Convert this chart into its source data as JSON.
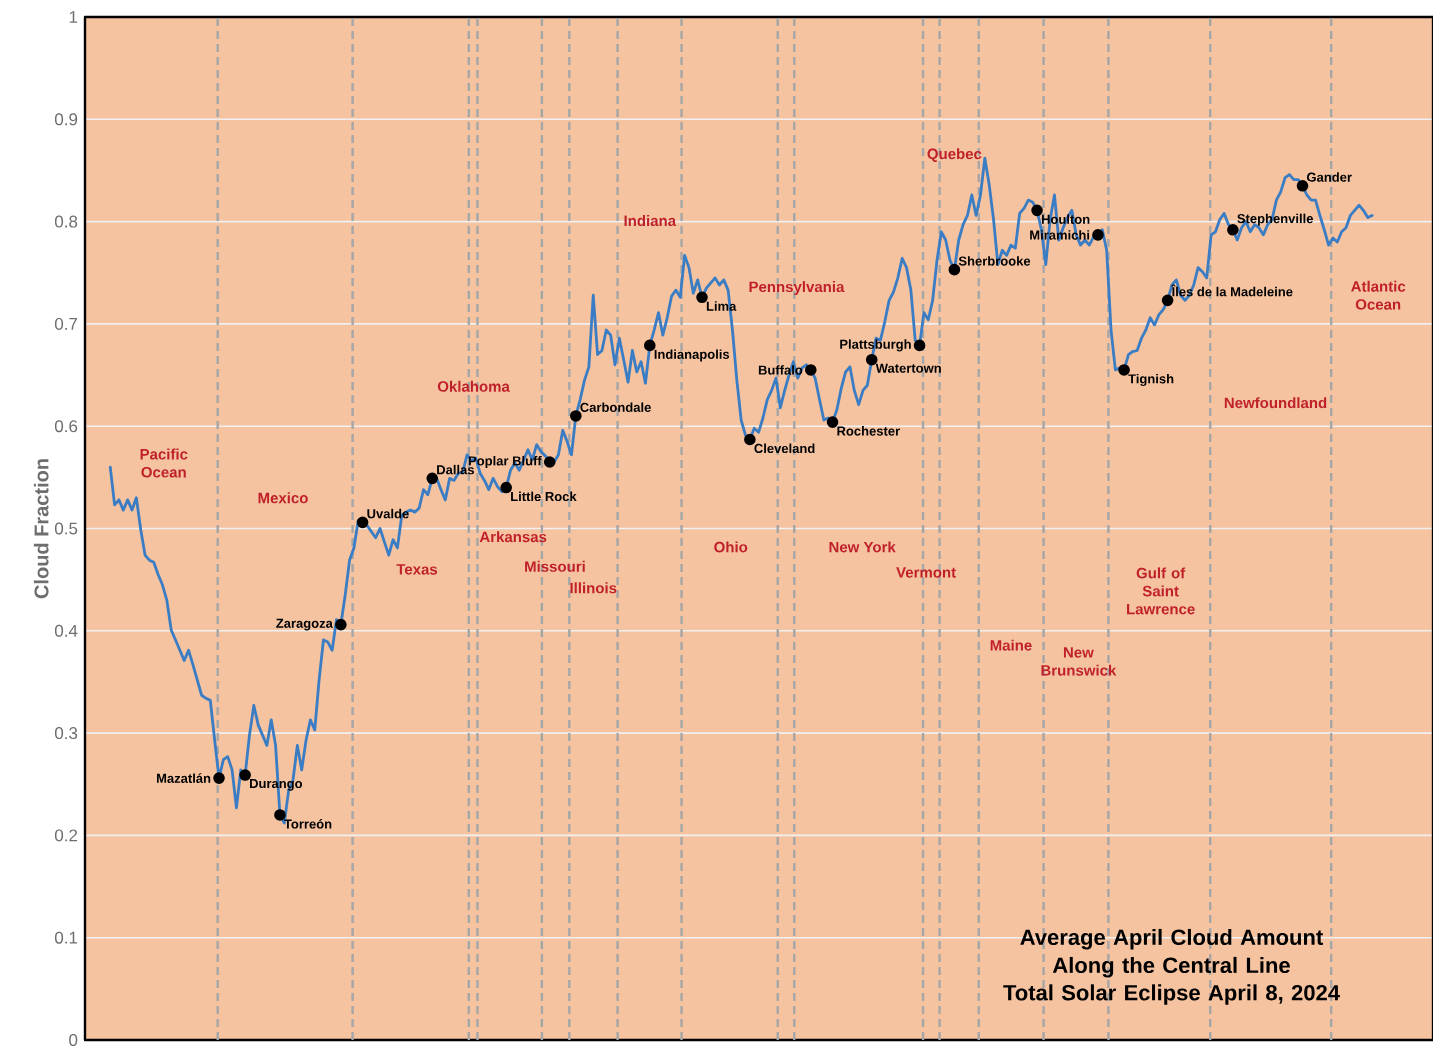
{
  "chart_data": {
    "type": "line",
    "title": "Average April Cloud Amount Along the Central Line",
    "subtitle": "Total Solar Eclipse April 8, 2024",
    "ylabel": "Cloud Fraction",
    "categories": [
      null,
      null,
      null,
      null,
      null,
      null,
      null,
      null,
      null,
      null,
      null,
      null,
      null,
      null,
      null,
      null,
      null,
      null,
      null,
      null,
      null,
      null,
      null,
      null,
      null,
      null,
      null,
      null,
      null,
      null,
      null,
      null,
      null,
      null,
      null,
      null,
      null,
      null,
      null,
      null,
      null,
      null,
      null,
      null,
      null,
      null,
      null,
      null,
      null,
      null,
      null,
      null,
      null,
      null,
      null,
      null,
      null,
      null,
      null,
      null,
      null,
      null,
      null,
      null,
      null,
      null,
      null,
      null,
      null,
      null,
      null,
      null,
      null,
      null,
      null,
      null,
      null,
      null,
      null,
      null,
      null,
      null,
      null,
      null,
      null,
      null,
      null,
      null,
      null,
      null,
      null,
      null,
      null,
      null,
      null,
      null,
      null,
      null,
      null,
      null,
      null,
      null,
      null,
      null,
      null,
      null,
      null,
      null,
      null,
      null,
      null,
      null,
      null,
      null,
      null,
      null,
      null,
      null,
      null,
      null,
      null,
      null,
      null,
      null,
      null,
      null,
      null,
      null,
      null,
      null,
      null,
      null,
      null,
      null,
      null,
      null,
      null,
      null,
      null,
      null,
      null,
      null,
      null,
      null,
      null,
      null,
      null,
      null,
      null,
      null,
      null,
      null,
      null,
      null,
      null,
      null,
      null,
      null,
      null,
      null,
      null,
      null,
      null,
      null,
      null,
      null,
      null,
      null,
      null,
      null,
      null,
      null,
      null,
      null,
      null,
      null,
      null,
      null,
      null,
      null,
      null,
      null,
      null,
      null,
      null,
      null,
      null,
      null,
      null,
      null,
      null,
      null,
      null,
      null,
      null,
      null,
      null,
      null,
      null,
      null,
      null,
      null,
      null,
      null,
      null,
      null,
      null,
      null,
      null,
      null,
      null,
      null,
      null,
      null,
      null,
      null,
      null,
      null,
      null,
      null,
      null,
      null,
      null,
      null,
      null,
      null,
      null,
      null,
      null,
      null,
      null,
      null,
      null,
      null,
      null,
      null,
      null,
      null,
      null,
      null,
      null,
      null,
      null,
      null,
      null,
      null,
      null,
      null,
      null,
      null,
      null,
      null,
      null,
      null,
      null,
      null,
      null,
      null,
      null,
      null,
      null,
      null,
      null,
      null,
      null,
      null,
      null,
      null,
      null,
      null,
      null,
      null,
      null,
      null,
      null,
      null,
      null,
      null,
      null,
      null,
      null,
      null,
      null,
      null,
      null,
      null,
      null,
      null,
      null,
      null,
      null
    ],
    "ylim": [
      0,
      1
    ],
    "yticks": [
      0,
      0.1,
      0.2,
      0.3,
      0.4,
      0.5,
      0.6,
      0.7,
      0.8,
      0.9,
      1
    ],
    "tick_labels": "y",
    "grid": "y",
    "series": [
      {
        "color": "#3a7dc4",
        "values": [
          0.56,
          0.523,
          0.528,
          0.518,
          0.528,
          0.518,
          0.53,
          0.499,
          0.474,
          0.469,
          0.467,
          0.455,
          0.445,
          0.43,
          0.401,
          0.391,
          0.381,
          0.371,
          0.381,
          0.367,
          0.352,
          0.337,
          0.334,
          0.332,
          0.293,
          0.256,
          0.274,
          0.277,
          0.264,
          0.227,
          0.264,
          0.259,
          0.298,
          0.327,
          0.308,
          0.298,
          0.288,
          0.313,
          0.288,
          0.22,
          0.212,
          0.244,
          0.254,
          0.288,
          0.264,
          0.293,
          0.313,
          0.303,
          0.352,
          0.391,
          0.389,
          0.381,
          0.411,
          0.406,
          0.435,
          0.469,
          0.481,
          0.508,
          0.506,
          0.503,
          0.497,
          0.491,
          0.5,
          0.487,
          0.474,
          0.489,
          0.481,
          0.513,
          0.516,
          0.518,
          0.516,
          0.52,
          0.538,
          0.533,
          0.549,
          0.549,
          0.538,
          0.528,
          0.549,
          0.547,
          0.554,
          0.555,
          0.572,
          0.566,
          0.569,
          0.554,
          0.547,
          0.538,
          0.549,
          0.541,
          0.536,
          0.54,
          0.557,
          0.564,
          0.557,
          0.567,
          0.577,
          0.567,
          0.582,
          0.575,
          0.571,
          0.565,
          0.565,
          0.572,
          0.596,
          0.585,
          0.572,
          0.61,
          0.626,
          0.645,
          0.658,
          0.728,
          0.67,
          0.674,
          0.694,
          0.689,
          0.66,
          0.686,
          0.665,
          0.643,
          0.674,
          0.653,
          0.663,
          0.642,
          0.679,
          0.694,
          0.711,
          0.689,
          0.706,
          0.727,
          0.733,
          0.726,
          0.767,
          0.755,
          0.73,
          0.743,
          0.726,
          0.735,
          0.74,
          0.745,
          0.738,
          0.743,
          0.733,
          0.694,
          0.645,
          0.606,
          0.591,
          0.587,
          0.598,
          0.594,
          0.608,
          0.626,
          0.635,
          0.647,
          0.618,
          0.635,
          0.65,
          0.663,
          0.647,
          0.657,
          0.66,
          0.655,
          0.647,
          0.626,
          0.606,
          0.608,
          0.604,
          0.616,
          0.637,
          0.653,
          0.658,
          0.635,
          0.621,
          0.635,
          0.64,
          0.665,
          0.686,
          0.684,
          0.702,
          0.723,
          0.731,
          0.745,
          0.764,
          0.755,
          0.733,
          0.684,
          0.679,
          0.711,
          0.704,
          0.723,
          0.762,
          0.79,
          0.782,
          0.762,
          0.753,
          0.782,
          0.797,
          0.806,
          0.826,
          0.806,
          0.826,
          0.862,
          0.836,
          0.802,
          0.758,
          0.772,
          0.767,
          0.777,
          0.774,
          0.808,
          0.813,
          0.821,
          0.819,
          0.811,
          0.792,
          0.758,
          0.802,
          0.826,
          0.782,
          0.794,
          0.804,
          0.811,
          0.787,
          0.777,
          0.782,
          0.777,
          0.785,
          0.787,
          0.792,
          0.772,
          0.694,
          0.655,
          0.657,
          0.655,
          0.67,
          0.673,
          0.674,
          0.686,
          0.694,
          0.706,
          0.699,
          0.709,
          0.714,
          0.723,
          0.738,
          0.743,
          0.728,
          0.723,
          0.728,
          0.738,
          0.755,
          0.751,
          0.745,
          0.787,
          0.79,
          0.802,
          0.808,
          0.797,
          0.792,
          0.782,
          0.794,
          0.8,
          0.79,
          0.797,
          0.794,
          0.787,
          0.797,
          0.802,
          0.821,
          0.829,
          0.843,
          0.846,
          0.841,
          0.841,
          0.835,
          0.826,
          0.821,
          0.821,
          0.806,
          0.792,
          0.777,
          0.784,
          0.78,
          0.79,
          0.794,
          0.806,
          0.811,
          0.816,
          0.811,
          0.804,
          0.806
        ],
        "value_labels": [
          null,
          null,
          null,
          null,
          null,
          null,
          null,
          null,
          null,
          null,
          null,
          null,
          null,
          null,
          null,
          null,
          null,
          null,
          null,
          null,
          null,
          null,
          null,
          null,
          null,
          "Mazatlán",
          null,
          null,
          null,
          null,
          null,
          "Durango",
          null,
          null,
          null,
          null,
          null,
          null,
          null,
          "Torreón",
          null,
          null,
          null,
          null,
          null,
          null,
          null,
          null,
          null,
          null,
          null,
          null,
          null,
          "Zaragoza",
          null,
          null,
          null,
          null,
          "Uvalde",
          null,
          null,
          null,
          null,
          null,
          null,
          null,
          null,
          null,
          null,
          null,
          null,
          null,
          null,
          null,
          "Dallas",
          null,
          null,
          null,
          null,
          null,
          null,
          null,
          null,
          null,
          null,
          null,
          null,
          null,
          null,
          null,
          null,
          "Little Rock",
          null,
          null,
          null,
          null,
          null,
          null,
          null,
          null,
          null,
          "Poplar Bluff",
          null,
          null,
          null,
          null,
          null,
          "Carbondale",
          null,
          null,
          null,
          null,
          null,
          null,
          null,
          null,
          null,
          null,
          null,
          null,
          null,
          null,
          null,
          null,
          "Indianapolis",
          null,
          null,
          null,
          null,
          null,
          null,
          null,
          null,
          null,
          null,
          null,
          "Lima",
          null,
          null,
          null,
          null,
          null,
          null,
          null,
          null,
          null,
          null,
          "Cleveland",
          null,
          null,
          null,
          null,
          null,
          null,
          null,
          null,
          null,
          null,
          null,
          null,
          null,
          "Buffalo",
          null,
          null,
          null,
          null,
          "Rochester",
          null,
          null,
          null,
          null,
          null,
          null,
          null,
          null,
          "Watertown",
          null,
          null,
          null,
          null,
          null,
          null,
          null,
          null,
          null,
          null,
          "Plattsburgh",
          null,
          null,
          null,
          null,
          null,
          null,
          null,
          "Sherbrooke",
          null,
          null,
          null,
          null,
          null,
          null,
          null,
          null,
          null,
          null,
          null,
          null,
          null,
          null,
          null,
          null,
          null,
          null,
          "Houlton",
          null,
          null,
          null,
          null,
          null,
          null,
          null,
          null,
          null,
          null,
          null,
          null,
          null,
          "Miramichi",
          null,
          null,
          null,
          null,
          null,
          "Tignish",
          null,
          null,
          null,
          null,
          null,
          null,
          null,
          null,
          null,
          "Îles de la Madeleine",
          null,
          null,
          null,
          null,
          null,
          null,
          null,
          null,
          null,
          null,
          null,
          null,
          null,
          null,
          "Stephenville",
          null,
          null,
          null,
          null,
          null,
          null,
          null,
          null,
          null,
          null,
          null,
          null,
          null,
          null,
          null,
          "Gander",
          null,
          null,
          null,
          null,
          null,
          null,
          null,
          null,
          null,
          null,
          null,
          null,
          null,
          null,
          null,
          null
        ]
      }
    ],
    "annotations": [
      "Pacific Ocean",
      "Mexico",
      "Texas",
      "Oklahoma",
      "Arkansas",
      "Missouri",
      "Illinois",
      "Indiana",
      "Ohio",
      "Pennsylvania",
      "New York",
      "Vermont",
      "Quebec",
      "Maine",
      "New Brunswick",
      "Gulf of Saint Lawrence",
      "Newfoundland",
      "Atlantic Ocean"
    ]
  }
}
